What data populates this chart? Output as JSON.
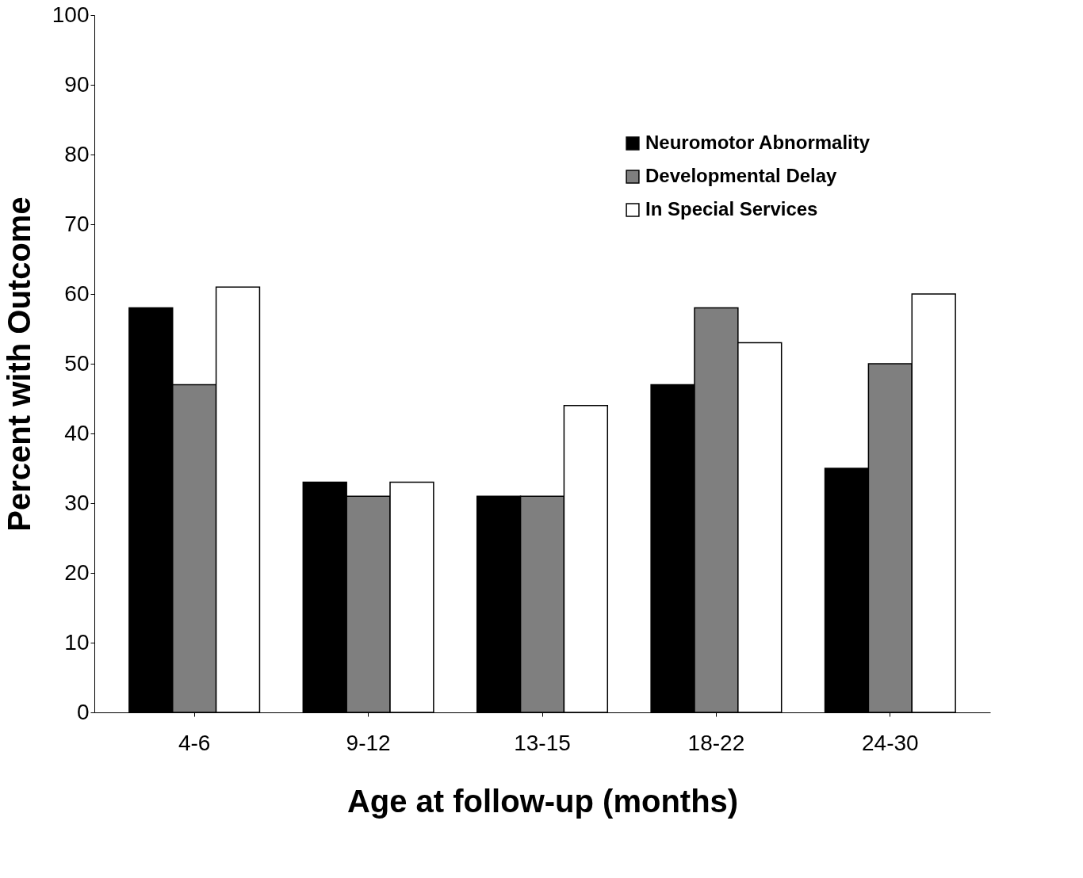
{
  "chart_data": {
    "type": "bar",
    "xlabel": "Age at follow-up (months)",
    "ylabel": "Percent with Outcome",
    "categories": [
      "4-6",
      "9-12",
      "13-15",
      "18-22",
      "24-30"
    ],
    "series": [
      {
        "name": "Neuromotor Abnormality",
        "color": "#000000",
        "values": [
          58,
          33,
          31,
          47,
          35
        ]
      },
      {
        "name": "Developmental Delay",
        "color": "#7f7f7f",
        "values": [
          47,
          31,
          31,
          58,
          50
        ]
      },
      {
        "name": "In Special Services",
        "color": "#ffffff",
        "values": [
          61,
          33,
          44,
          53,
          60
        ]
      }
    ],
    "ylim": [
      0,
      100
    ],
    "yticks": [
      0,
      10,
      20,
      30,
      40,
      50,
      60,
      70,
      80,
      90,
      100
    ],
    "grid": false,
    "legend": "top right"
  }
}
